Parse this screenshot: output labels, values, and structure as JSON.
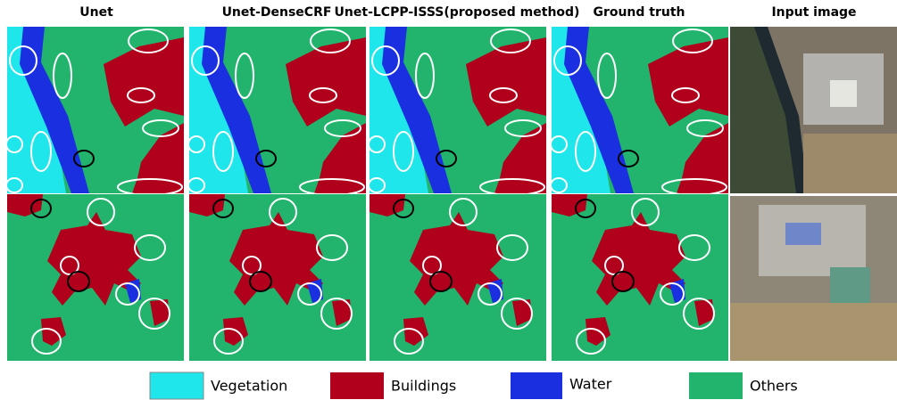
{
  "columns": [
    {
      "title": "Unet"
    },
    {
      "title": "Unet-DenseCRF"
    },
    {
      "title": "Unet-LCPP-ISSS(proposed method)"
    },
    {
      "title": "Ground truth"
    },
    {
      "title": "Input image"
    }
  ],
  "legend": [
    {
      "label": "Vegetation"
    },
    {
      "label": "Buildings"
    },
    {
      "label": "Water"
    },
    {
      "label": "Others"
    }
  ]
}
